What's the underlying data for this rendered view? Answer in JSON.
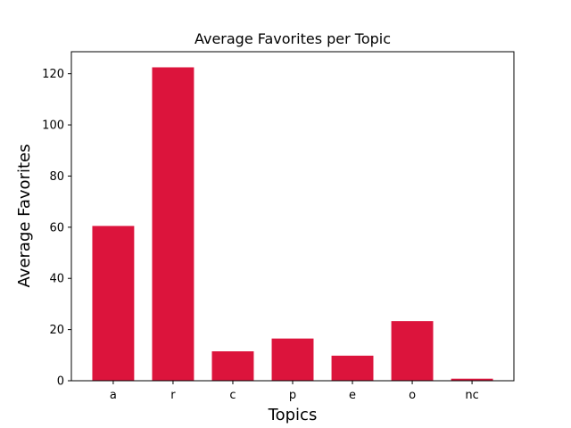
{
  "chart_data": {
    "type": "bar",
    "title": "Average Favorites per Topic",
    "xlabel": "Topics",
    "ylabel": "Average Favorites",
    "categories": [
      "a",
      "r",
      "c",
      "p",
      "e",
      "o",
      "nc"
    ],
    "values": [
      60.5,
      122.5,
      11.5,
      16.5,
      9.8,
      23.3,
      0.8
    ],
    "ylim": [
      0,
      128.6
    ],
    "yticks": [
      0,
      20,
      40,
      60,
      80,
      100,
      120
    ],
    "bar_color": "#dc143c",
    "grid": false,
    "legend": "none"
  }
}
